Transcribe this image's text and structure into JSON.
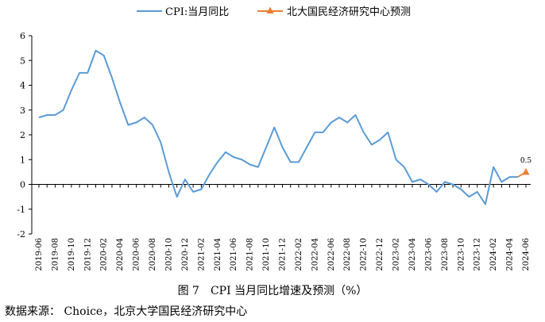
{
  "chart_data": {
    "type": "line",
    "title": "",
    "xlabel": "",
    "ylabel": "",
    "ylim": [
      -2,
      6
    ],
    "yticks": [
      -2,
      -1,
      0,
      1,
      2,
      3,
      4,
      5,
      6
    ],
    "x": [
      "2019-06",
      "2019-07",
      "2019-08",
      "2019-09",
      "2019-10",
      "2019-11",
      "2019-12",
      "2020-01",
      "2020-02",
      "2020-03",
      "2020-04",
      "2020-05",
      "2020-06",
      "2020-07",
      "2020-08",
      "2020-09",
      "2020-10",
      "2020-11",
      "2020-12",
      "2021-01",
      "2021-02",
      "2021-03",
      "2021-04",
      "2021-05",
      "2021-06",
      "2021-07",
      "2021-08",
      "2021-09",
      "2021-10",
      "2021-11",
      "2021-12",
      "2022-01",
      "2022-02",
      "2022-03",
      "2022-04",
      "2022-05",
      "2022-06",
      "2022-07",
      "2022-08",
      "2022-09",
      "2022-10",
      "2022-11",
      "2022-12",
      "2023-01",
      "2023-02",
      "2023-03",
      "2023-04",
      "2023-05",
      "2023-06",
      "2023-07",
      "2023-08",
      "2023-09",
      "2023-10",
      "2023-11",
      "2023-12",
      "2024-01",
      "2024-02",
      "2024-03",
      "2024-04",
      "2024-05",
      "2024-06"
    ],
    "x_tick_labels": [
      "2019-06",
      "2019-08",
      "2019-10",
      "2019-12",
      "2020-02",
      "2020-04",
      "2020-06",
      "2020-08",
      "2020-10",
      "2020-12",
      "2021-02",
      "2021-04",
      "2021-06",
      "2021-08",
      "2021-10",
      "2021-12",
      "2022-02",
      "2022-04",
      "2022-06",
      "2022-08",
      "2022-10",
      "2022-12",
      "2023-02",
      "2023-04",
      "2023-06",
      "2023-08",
      "2023-10",
      "2023-12",
      "2024-02",
      "2024-04",
      "2024-06"
    ],
    "series": [
      {
        "name": "CPI:当月同比",
        "color": "#5b9bd5",
        "values": [
          2.7,
          2.8,
          2.8,
          3.0,
          3.8,
          4.5,
          4.5,
          5.4,
          5.2,
          4.3,
          3.3,
          2.4,
          2.5,
          2.7,
          2.4,
          1.7,
          0.5,
          -0.5,
          0.2,
          -0.3,
          -0.2,
          0.4,
          0.9,
          1.3,
          1.1,
          1.0,
          0.8,
          0.7,
          1.5,
          2.3,
          1.5,
          0.9,
          0.9,
          1.5,
          2.1,
          2.1,
          2.5,
          2.7,
          2.5,
          2.8,
          2.1,
          1.6,
          1.8,
          2.1,
          1.0,
          0.7,
          0.1,
          0.2,
          0.0,
          -0.3,
          0.1,
          0.0,
          -0.2,
          -0.5,
          -0.3,
          -0.8,
          0.7,
          0.1,
          0.3,
          0.3,
          null
        ]
      },
      {
        "name": "北大国民经济研究中心预测",
        "color": "#ed7d31",
        "marker": "triangle",
        "values": [
          null,
          null,
          null,
          null,
          null,
          null,
          null,
          null,
          null,
          null,
          null,
          null,
          null,
          null,
          null,
          null,
          null,
          null,
          null,
          null,
          null,
          null,
          null,
          null,
          null,
          null,
          null,
          null,
          null,
          null,
          null,
          null,
          null,
          null,
          null,
          null,
          null,
          null,
          null,
          null,
          null,
          null,
          null,
          null,
          null,
          null,
          null,
          null,
          null,
          null,
          null,
          null,
          null,
          null,
          null,
          null,
          null,
          null,
          null,
          0.3,
          0.5
        ]
      }
    ],
    "annotations": [
      {
        "x": "2024-06",
        "y": 0.5,
        "text": "0.5"
      }
    ],
    "legend_position": "top-center",
    "grid": false
  },
  "caption": "图 7　CPI 当月同比增速及预测（%）",
  "source": "数据来源：  Choice，北京大学国民经济研究中心"
}
